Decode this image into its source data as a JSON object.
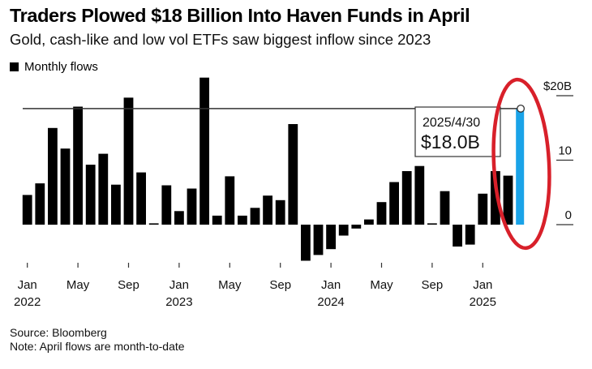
{
  "header": {
    "title": "Traders Plowed $18 Billion Into Haven Funds in April",
    "subtitle": "Gold, cash-like and low vol ETFs saw biggest inflow since 2023"
  },
  "legend": {
    "label": "Monthly flows"
  },
  "footer": {
    "source": "Source: Bloomberg",
    "note": "Note: April flows are month-to-date"
  },
  "annotation": {
    "date": "2025/4/30",
    "value_label": "$18.0B",
    "value": 18.0
  },
  "colors": {
    "bar": "#000000",
    "highlight_bar": "#1aa3e8",
    "reference_line": "#333333",
    "circle_marker": "#d8202a"
  },
  "chart_data": {
    "type": "bar",
    "title": "Traders Plowed $18 Billion Into Haven Funds in April",
    "subtitle": "Gold, cash-like and low vol ETFs saw biggest inflow since 2023",
    "xlabel": "",
    "ylabel": "",
    "ylim": [
      -7,
      20
    ],
    "y_ticks": [
      {
        "value": 20,
        "label": "$20B"
      },
      {
        "value": 10,
        "label": "10"
      },
      {
        "value": 0,
        "label": "0"
      }
    ],
    "x_ticks": [
      {
        "index": 0,
        "month": "Jan",
        "year": "2022"
      },
      {
        "index": 4,
        "month": "May",
        "year": ""
      },
      {
        "index": 8,
        "month": "Sep",
        "year": ""
      },
      {
        "index": 12,
        "month": "Jan",
        "year": "2023"
      },
      {
        "index": 16,
        "month": "May",
        "year": ""
      },
      {
        "index": 20,
        "month": "Sep",
        "year": ""
      },
      {
        "index": 24,
        "month": "Jan",
        "year": "2024"
      },
      {
        "index": 28,
        "month": "May",
        "year": ""
      },
      {
        "index": 32,
        "month": "Sep",
        "year": ""
      },
      {
        "index": 36,
        "month": "Jan",
        "year": "2025"
      }
    ],
    "reference_line": 18.0,
    "highlight_index": 39,
    "legend": [
      "Monthly flows"
    ],
    "categories": [
      "2022-01",
      "2022-02",
      "2022-03",
      "2022-04",
      "2022-05",
      "2022-06",
      "2022-07",
      "2022-08",
      "2022-09",
      "2022-10",
      "2022-11",
      "2022-12",
      "2023-01",
      "2023-02",
      "2023-03",
      "2023-04",
      "2023-05",
      "2023-06",
      "2023-07",
      "2023-08",
      "2023-09",
      "2023-10",
      "2023-11",
      "2023-12",
      "2024-01",
      "2024-02",
      "2024-03",
      "2024-04",
      "2024-05",
      "2024-06",
      "2024-07",
      "2024-08",
      "2024-09",
      "2024-10",
      "2024-11",
      "2024-12",
      "2025-01",
      "2025-02",
      "2025-03",
      "2025-04"
    ],
    "series": [
      {
        "name": "Monthly flows",
        "values": [
          4.6,
          6.4,
          15.0,
          11.8,
          18.3,
          9.3,
          11.0,
          6.2,
          19.7,
          8.1,
          0.2,
          6.1,
          2.1,
          5.6,
          22.8,
          1.4,
          7.5,
          1.4,
          2.6,
          4.5,
          3.8,
          15.6,
          -5.6,
          -4.7,
          -3.8,
          -1.7,
          -0.6,
          0.8,
          3.5,
          6.6,
          8.3,
          9.1,
          0.1,
          5.2,
          -3.4,
          -3.1,
          4.8,
          8.3,
          7.6,
          18.0
        ]
      }
    ]
  }
}
